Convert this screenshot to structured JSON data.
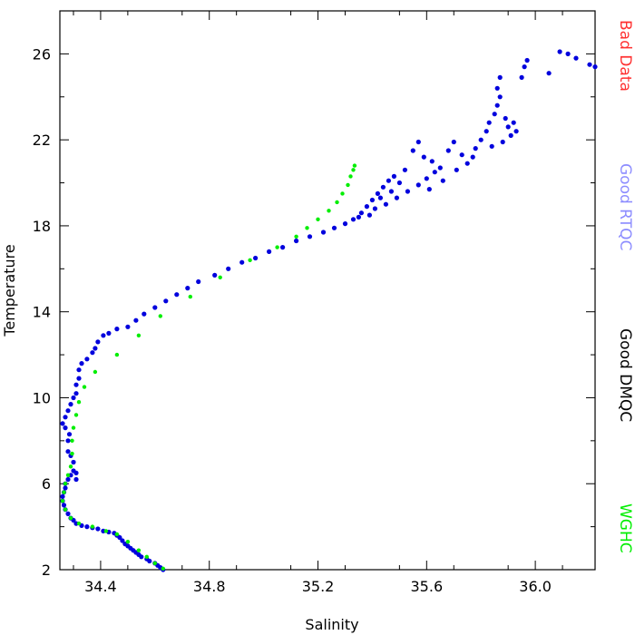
{
  "chart_data": {
    "type": "scatter",
    "xlabel": "Salinity",
    "ylabel": "Temperature",
    "xlim": [
      34.25,
      36.22
    ],
    "ylim": [
      2,
      28
    ],
    "xticks": [
      34.4,
      34.8,
      35.2,
      35.6,
      36.0
    ],
    "xtick_labels": [
      "34.4",
      "34.8",
      "35.2",
      "35.6",
      "36.0"
    ],
    "yticks": [
      2,
      6,
      10,
      14,
      18,
      22,
      26
    ],
    "ytick_labels": [
      "2",
      "6",
      "10",
      "14",
      "18",
      "22",
      "26"
    ],
    "legend": [
      {
        "label": "Bad Data",
        "color": "#ff3030"
      },
      {
        "label": "Good RTQC",
        "color": "#8c8cff"
      },
      {
        "label": "Good DMQC",
        "color": "#000000"
      },
      {
        "label": "WGHC",
        "color": "#00ee00"
      }
    ],
    "legend_placement": "right",
    "series": [
      {
        "color": "#0000dd",
        "points": [
          [
            34.63,
            2.0
          ],
          [
            34.62,
            2.1
          ],
          [
            34.61,
            2.2
          ],
          [
            34.6,
            2.3
          ],
          [
            34.58,
            2.4
          ],
          [
            34.57,
            2.5
          ],
          [
            34.55,
            2.6
          ],
          [
            34.54,
            2.7
          ],
          [
            34.53,
            2.8
          ],
          [
            34.52,
            2.9
          ],
          [
            34.51,
            3.0
          ],
          [
            34.5,
            3.1
          ],
          [
            34.49,
            3.2
          ],
          [
            34.48,
            3.35
          ],
          [
            34.47,
            3.5
          ],
          [
            34.46,
            3.6
          ],
          [
            34.45,
            3.7
          ],
          [
            34.43,
            3.75
          ],
          [
            34.41,
            3.8
          ],
          [
            34.39,
            3.9
          ],
          [
            34.37,
            3.95
          ],
          [
            34.35,
            4.0
          ],
          [
            34.33,
            4.05
          ],
          [
            34.31,
            4.15
          ],
          [
            34.3,
            4.3
          ],
          [
            34.29,
            4.4
          ],
          [
            34.28,
            4.6
          ],
          [
            34.27,
            4.8
          ],
          [
            34.265,
            5.0
          ],
          [
            34.26,
            5.2
          ],
          [
            34.26,
            5.4
          ],
          [
            34.265,
            5.6
          ],
          [
            34.27,
            5.8
          ],
          [
            34.27,
            6.0
          ],
          [
            34.28,
            6.2
          ],
          [
            34.29,
            6.4
          ],
          [
            34.3,
            6.6
          ],
          [
            34.31,
            6.2
          ],
          [
            34.31,
            6.5
          ],
          [
            34.3,
            7.0
          ],
          [
            34.29,
            7.3
          ],
          [
            34.28,
            7.5
          ],
          [
            34.28,
            8.0
          ],
          [
            34.285,
            8.3
          ],
          [
            34.27,
            8.6
          ],
          [
            34.26,
            8.8
          ],
          [
            34.27,
            9.1
          ],
          [
            34.28,
            9.4
          ],
          [
            34.29,
            9.7
          ],
          [
            34.3,
            10.0
          ],
          [
            34.31,
            10.2
          ],
          [
            34.31,
            10.6
          ],
          [
            34.32,
            10.9
          ],
          [
            34.32,
            11.3
          ],
          [
            34.33,
            11.6
          ],
          [
            34.35,
            11.8
          ],
          [
            34.37,
            12.1
          ],
          [
            34.38,
            12.3
          ],
          [
            34.39,
            12.6
          ],
          [
            34.41,
            12.9
          ],
          [
            34.43,
            13.0
          ],
          [
            34.46,
            13.2
          ],
          [
            34.5,
            13.3
          ],
          [
            34.53,
            13.6
          ],
          [
            34.56,
            13.9
          ],
          [
            34.6,
            14.2
          ],
          [
            34.64,
            14.5
          ],
          [
            34.68,
            14.8
          ],
          [
            34.72,
            15.1
          ],
          [
            34.76,
            15.4
          ],
          [
            34.82,
            15.7
          ],
          [
            34.87,
            16.0
          ],
          [
            34.92,
            16.3
          ],
          [
            34.97,
            16.5
          ],
          [
            35.02,
            16.8
          ],
          [
            35.07,
            17.0
          ],
          [
            35.12,
            17.3
          ],
          [
            35.17,
            17.5
          ],
          [
            35.22,
            17.7
          ],
          [
            35.26,
            17.9
          ],
          [
            35.3,
            18.1
          ],
          [
            35.33,
            18.3
          ],
          [
            35.36,
            18.6
          ],
          [
            35.38,
            18.9
          ],
          [
            35.4,
            19.2
          ],
          [
            35.42,
            19.5
          ],
          [
            35.44,
            19.8
          ],
          [
            35.46,
            20.1
          ],
          [
            35.48,
            20.3
          ],
          [
            35.39,
            18.5
          ],
          [
            35.41,
            18.8
          ],
          [
            35.45,
            19.0
          ],
          [
            35.49,
            19.3
          ],
          [
            35.53,
            19.6
          ],
          [
            35.57,
            19.9
          ],
          [
            35.6,
            20.2
          ],
          [
            35.63,
            20.5
          ],
          [
            35.55,
            21.5
          ],
          [
            35.57,
            21.9
          ],
          [
            35.59,
            21.2
          ],
          [
            35.62,
            21.0
          ],
          [
            35.65,
            20.7
          ],
          [
            35.68,
            21.5
          ],
          [
            35.7,
            21.9
          ],
          [
            35.73,
            21.3
          ],
          [
            35.75,
            20.9
          ],
          [
            35.78,
            21.6
          ],
          [
            35.8,
            22.0
          ],
          [
            35.82,
            22.4
          ],
          [
            35.83,
            22.8
          ],
          [
            35.85,
            23.2
          ],
          [
            35.86,
            23.6
          ],
          [
            35.87,
            24.0
          ],
          [
            35.89,
            23.0
          ],
          [
            35.9,
            22.6
          ],
          [
            35.91,
            22.2
          ],
          [
            35.92,
            22.8
          ],
          [
            35.93,
            22.4
          ],
          [
            35.86,
            24.4
          ],
          [
            35.87,
            24.9
          ],
          [
            35.95,
            24.9
          ],
          [
            35.96,
            25.4
          ],
          [
            35.97,
            25.7
          ],
          [
            36.05,
            25.1
          ],
          [
            36.09,
            26.1
          ],
          [
            36.12,
            26.0
          ],
          [
            36.15,
            25.8
          ],
          [
            36.2,
            25.5
          ],
          [
            36.22,
            25.4
          ],
          [
            35.88,
            21.9
          ],
          [
            35.84,
            21.7
          ],
          [
            35.77,
            21.2
          ],
          [
            35.71,
            20.6
          ],
          [
            35.66,
            20.1
          ],
          [
            35.61,
            19.7
          ],
          [
            35.52,
            20.6
          ],
          [
            35.5,
            20.0
          ],
          [
            35.47,
            19.6
          ],
          [
            35.43,
            19.3
          ],
          [
            35.35,
            18.4
          ]
        ]
      },
      {
        "color": "#00ee00",
        "points": [
          [
            34.63,
            2.05
          ],
          [
            34.6,
            2.3
          ],
          [
            34.57,
            2.6
          ],
          [
            34.54,
            2.9
          ],
          [
            34.5,
            3.3
          ],
          [
            34.46,
            3.65
          ],
          [
            34.42,
            3.8
          ],
          [
            34.37,
            4.0
          ],
          [
            34.32,
            4.15
          ],
          [
            34.29,
            4.4
          ],
          [
            34.27,
            4.8
          ],
          [
            34.26,
            5.2
          ],
          [
            34.265,
            5.6
          ],
          [
            34.27,
            6.0
          ],
          [
            34.28,
            6.4
          ],
          [
            34.29,
            6.8
          ],
          [
            34.295,
            7.4
          ],
          [
            34.295,
            8.0
          ],
          [
            34.3,
            8.6
          ],
          [
            34.31,
            9.2
          ],
          [
            34.32,
            9.8
          ],
          [
            34.34,
            10.5
          ],
          [
            34.38,
            11.2
          ],
          [
            34.46,
            12.0
          ],
          [
            34.54,
            12.9
          ],
          [
            34.62,
            13.8
          ],
          [
            34.73,
            14.7
          ],
          [
            34.84,
            15.6
          ],
          [
            34.95,
            16.4
          ],
          [
            35.05,
            17.0
          ],
          [
            35.12,
            17.5
          ],
          [
            35.16,
            17.9
          ],
          [
            35.2,
            18.3
          ],
          [
            35.24,
            18.7
          ],
          [
            35.27,
            19.1
          ],
          [
            35.29,
            19.5
          ],
          [
            35.31,
            19.9
          ],
          [
            35.32,
            20.3
          ],
          [
            35.33,
            20.6
          ],
          [
            35.335,
            20.8
          ]
        ]
      }
    ]
  }
}
